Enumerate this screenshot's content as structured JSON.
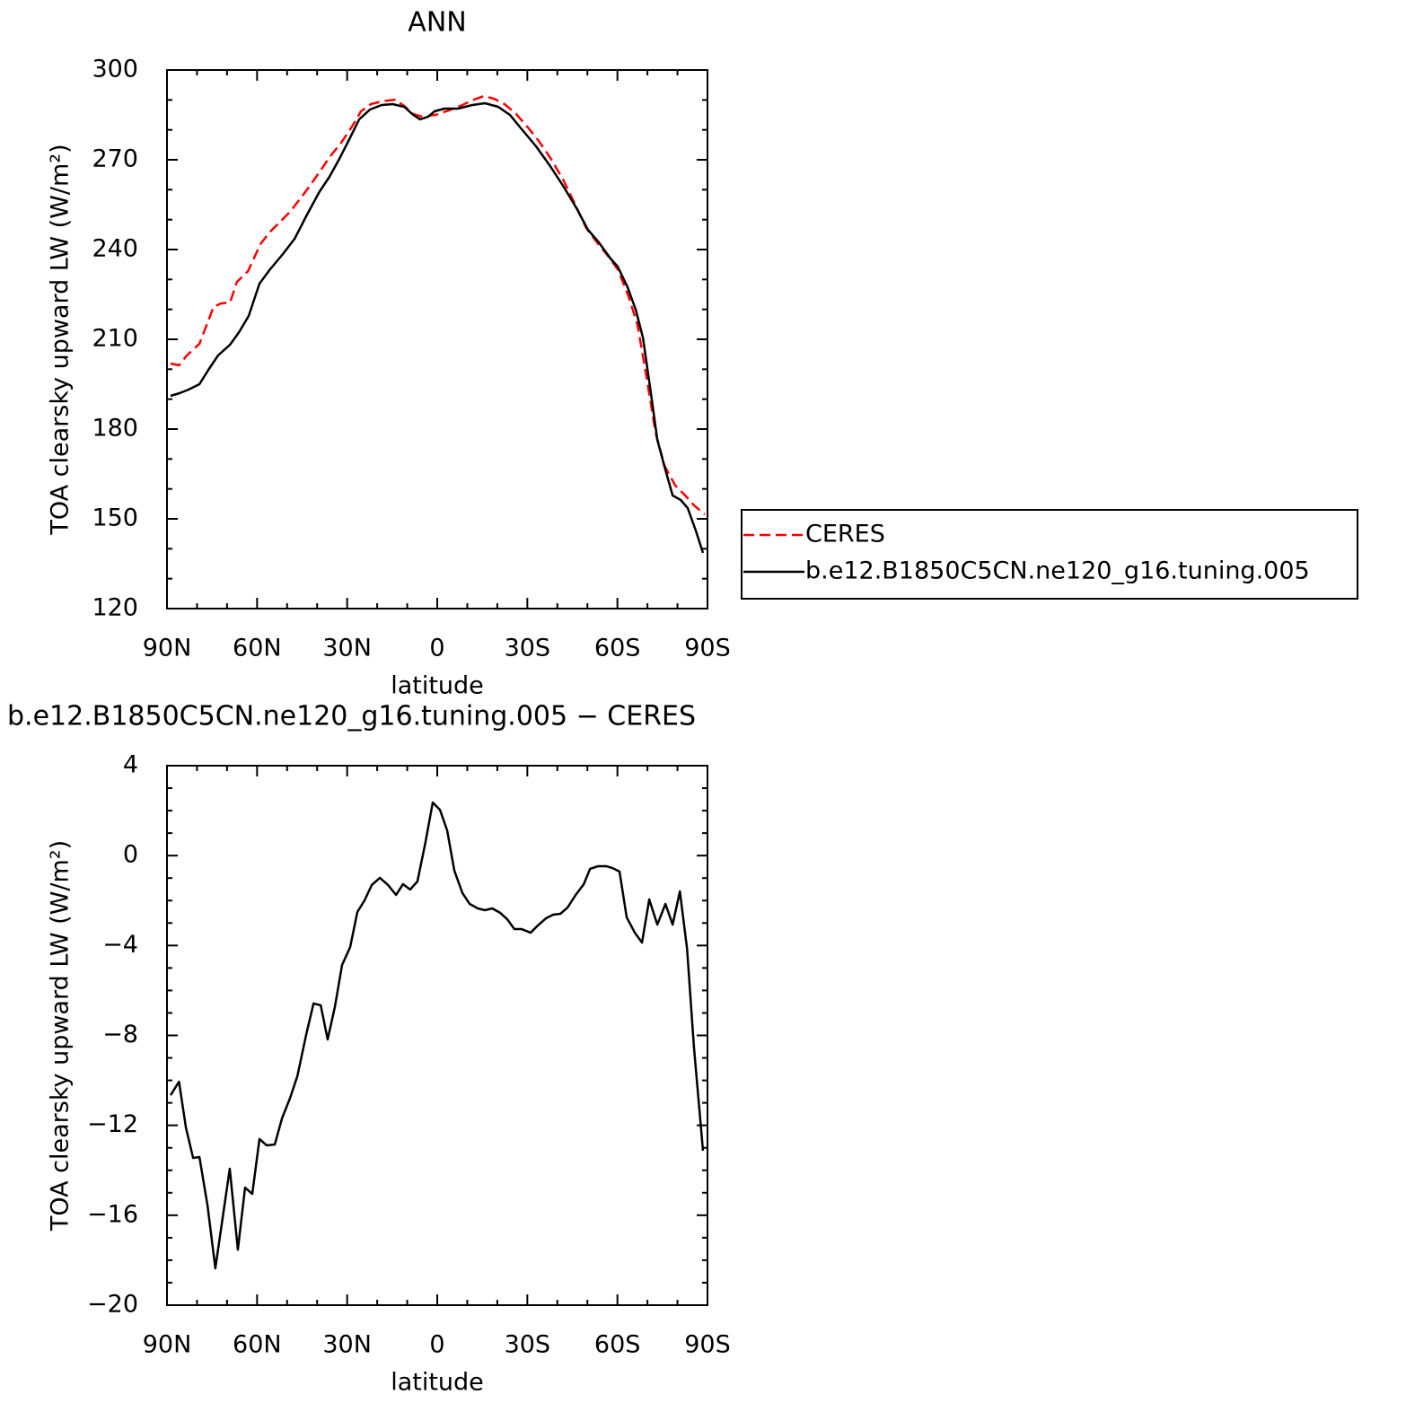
{
  "chart_data": [
    {
      "type": "line",
      "title": "ANN",
      "xlabel": "latitude",
      "ylabel": "TOA clearsky upward LW (W/m²)",
      "xlim": [
        90,
        -90
      ],
      "ylim": [
        120,
        300
      ],
      "xticks": [
        {
          "value": 90,
          "label": "90N"
        },
        {
          "value": 60,
          "label": "60N"
        },
        {
          "value": 30,
          "label": "30N"
        },
        0,
        {
          "value": -30,
          "label": "30S"
        },
        {
          "value": -60,
          "label": "60S"
        },
        {
          "value": -90,
          "label": "90S"
        }
      ],
      "yticks": [
        120,
        150,
        180,
        210,
        240,
        270,
        300
      ],
      "xminorticks": [
        80,
        70,
        50,
        40,
        20,
        10,
        -10,
        -20,
        -40,
        -50,
        -70,
        -80
      ],
      "yminorticks": [
        130,
        140,
        160,
        170,
        190,
        200,
        220,
        230,
        250,
        260,
        280,
        290
      ],
      "legend": "right",
      "series": [
        {
          "name": "CERES",
          "color": "#ff0000",
          "dash": true,
          "x": [
            88.8,
            86,
            83.4,
            79.2,
            74.5,
            72,
            69,
            66.7,
            63,
            58.9,
            55.9,
            52.6,
            49.3,
            46,
            42.2,
            38.9,
            35.6,
            32,
            28.4,
            25.4,
            22.1,
            18.5,
            14,
            11,
            8,
            5,
            0.6,
            -3.9,
            -8.4,
            -11.4,
            -15.6,
            -18.9,
            -22.4,
            -26.3,
            -30.2,
            -33.8,
            -37.7,
            -41.9,
            -45.8,
            -49.6,
            -53.2,
            -56.8,
            -60.1,
            -63.7,
            -66.7,
            -69.7,
            -72.7,
            -75.7,
            -79.3,
            -82.6,
            -85.5,
            -89.1
          ],
          "values": [
            201.9,
            201.3,
            204.6,
            208.5,
            220.8,
            222,
            222.3,
            229.2,
            232.8,
            241.8,
            245.7,
            249,
            252.3,
            256.5,
            261.6,
            266.4,
            271.2,
            275.7,
            281.1,
            286.2,
            288.6,
            289.5,
            290.1,
            288,
            285.3,
            284.4,
            285,
            286.5,
            288.3,
            289.8,
            291.3,
            290.4,
            288.6,
            285.3,
            280.8,
            276.3,
            270.6,
            263.4,
            255.3,
            247.2,
            242.4,
            237.9,
            233.4,
            224.4,
            214.8,
            197.4,
            178.8,
            167.7,
            161.1,
            157.8,
            154.5,
            151.5
          ]
        },
        {
          "name": "b.e12.B1850C5CN.ne120_g16.tuning.005",
          "color": "#000000",
          "dash": false,
          "x": [
            88.8,
            85.8,
            82.8,
            79.2,
            76.2,
            73,
            69,
            66,
            62.8,
            59.2,
            55.9,
            51.4,
            47.5,
            43.5,
            39.3,
            35.9,
            32.6,
            29.4,
            26,
            22.4,
            18.5,
            14.9,
            11,
            8,
            5.7,
            3,
            0.9,
            -2.4,
            -6.9,
            -11.7,
            -15.9,
            -20.3,
            -24.2,
            -28.4,
            -32.9,
            -37.4,
            -41.9,
            -46.4,
            -50.2,
            -53.8,
            -57.7,
            -60.1,
            -63.4,
            -66.1,
            -68.5,
            -70.9,
            -73.3,
            -75.7,
            -78.4,
            -81.1,
            -83.4,
            -86.1,
            -88.5
          ],
          "values": [
            191.1,
            192,
            193.2,
            195,
            199.8,
            204.6,
            208.2,
            212.4,
            217.8,
            228.6,
            233.1,
            238.5,
            243.6,
            251.4,
            259.2,
            264.3,
            270.3,
            276.6,
            283.5,
            286.8,
            288.3,
            288.6,
            287.7,
            285,
            283.5,
            284.4,
            286.2,
            287.1,
            287.1,
            288.3,
            288.9,
            287.7,
            285,
            279.9,
            274.5,
            268.2,
            261.3,
            253.8,
            246.6,
            242.4,
            237,
            234.3,
            227.4,
            219.9,
            210.6,
            193.8,
            176.4,
            167.4,
            157.8,
            156.3,
            153.6,
            146.1,
            138.6
          ]
        }
      ]
    },
    {
      "type": "line",
      "title": "b.e12.B1850C5CN.ne120_g16.tuning.005 − CERES",
      "xlabel": "latitude",
      "ylabel": "TOA clearsky upward LW (W/m²)",
      "xlim": [
        90,
        -90
      ],
      "ylim": [
        -20,
        4
      ],
      "xticks": [
        {
          "value": 90,
          "label": "90N"
        },
        {
          "value": 60,
          "label": "60N"
        },
        {
          "value": 30,
          "label": "30N"
        },
        0,
        {
          "value": -30,
          "label": "30S"
        },
        {
          "value": -60,
          "label": "60S"
        },
        {
          "value": -90,
          "label": "90S"
        }
      ],
      "yticks": [
        {
          "value": -20,
          "label": "−20"
        },
        {
          "value": -16,
          "label": "−16"
        },
        {
          "value": -12,
          "label": "−12"
        },
        {
          "value": -8,
          "label": "−8"
        },
        {
          "value": -4,
          "label": "−4"
        },
        0,
        4
      ],
      "xminorticks": [
        80,
        70,
        50,
        40,
        20,
        10,
        -10,
        -20,
        -40,
        -50,
        -70,
        -80
      ],
      "yminorticks": [
        -19,
        -18,
        -17,
        -15,
        -14,
        -13,
        -11,
        -10,
        -9,
        -7,
        -6,
        -5,
        -3,
        -2,
        -1,
        1,
        2,
        3
      ],
      "color": "#000000",
      "x": [
        88.8,
        86,
        83.7,
        81.3,
        79.2,
        76.5,
        73.9,
        69.1,
        66.4,
        64,
        61.6,
        59.2,
        56.8,
        54.1,
        51.7,
        49,
        46.6,
        43.6,
        41.2,
        38.8,
        36.5,
        34.1,
        31.7,
        29,
        26.6,
        24.2,
        21.8,
        19.1,
        16.4,
        13.7,
        11.4,
        9,
        6.6,
        3.9,
        1.5,
        -0.9,
        -3.3,
        -5.7,
        -8.4,
        -10.8,
        -13.5,
        -15.9,
        -18.3,
        -21,
        -23.3,
        -25.7,
        -28.1,
        -31.1,
        -33.5,
        -36.2,
        -38.6,
        -41,
        -43.4,
        -46.1,
        -48.8,
        -50.9,
        -53.6,
        -56.2,
        -58.3,
        -60.7,
        -63.1,
        -65.8,
        -68.2,
        -70.6,
        -73.3,
        -76,
        -78.4,
        -80.8,
        -83.2,
        -85.5,
        -88.5
      ],
      "values": [
        -10.66,
        -10.06,
        -12.1,
        -13.45,
        -13.41,
        -15.57,
        -18.36,
        -13.93,
        -17.53,
        -14.77,
        -15.05,
        -12.61,
        -12.89,
        -12.85,
        -11.69,
        -10.78,
        -9.82,
        -7.94,
        -6.58,
        -6.66,
        -8.18,
        -6.74,
        -4.87,
        -4.07,
        -2.51,
        -1.99,
        -1.31,
        -0.99,
        -1.31,
        -1.75,
        -1.27,
        -1.51,
        -1.15,
        0.61,
        2.36,
        2.04,
        1.12,
        -0.67,
        -1.67,
        -2.15,
        -2.35,
        -2.43,
        -2.35,
        -2.55,
        -2.83,
        -3.27,
        -3.27,
        -3.43,
        -3.11,
        -2.79,
        -2.63,
        -2.59,
        -2.31,
        -1.75,
        -1.27,
        -0.59,
        -0.47,
        -0.47,
        -0.55,
        -0.71,
        -2.75,
        -3.43,
        -3.87,
        -1.95,
        -3.07,
        -2.15,
        -3.07,
        -1.59,
        -4.15,
        -8.54,
        -13.13
      ]
    }
  ]
}
